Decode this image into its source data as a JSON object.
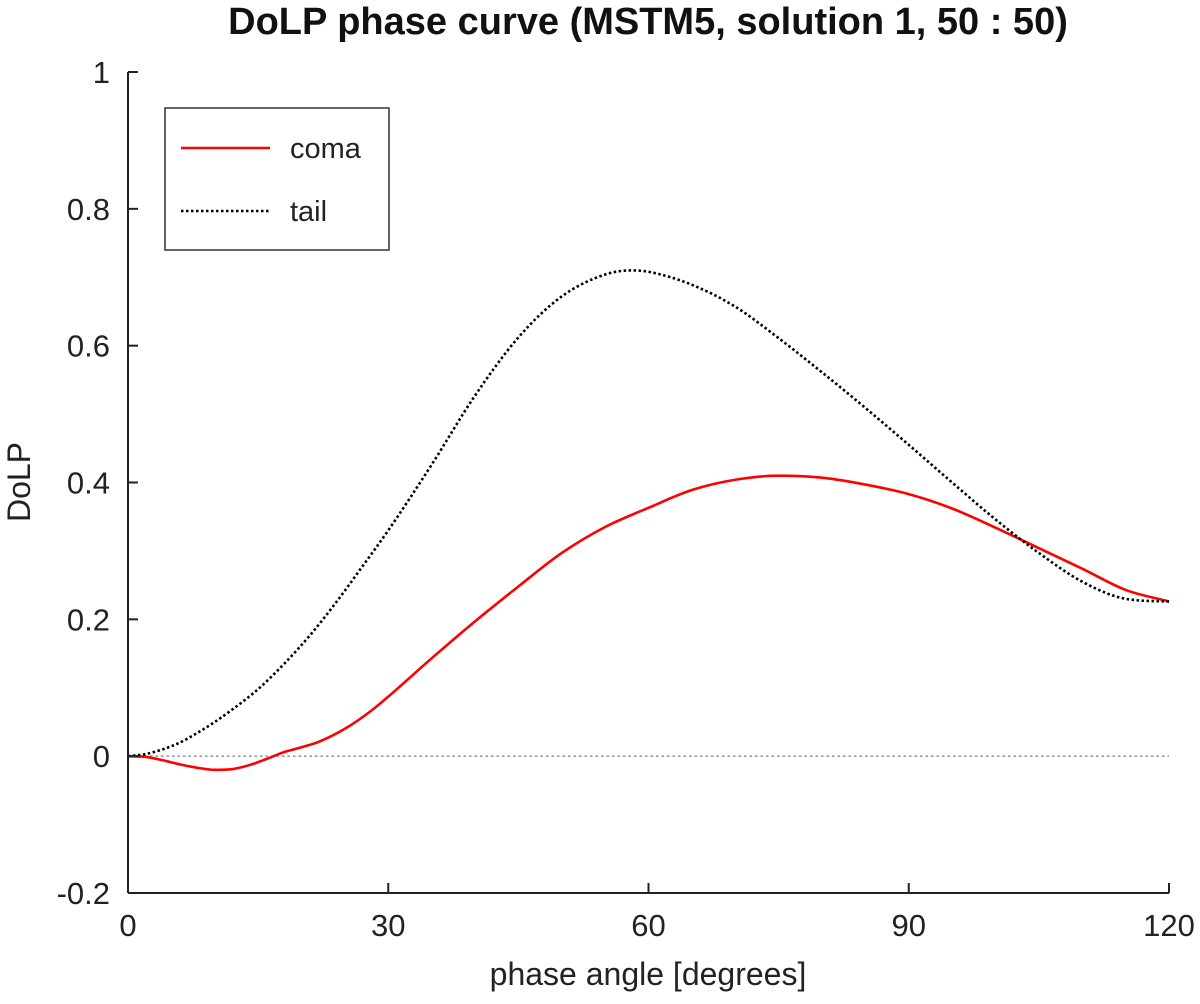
{
  "chart_data": {
    "type": "line",
    "title": "DoLP phase curve (MSTM5, solution 1, 50 : 50)",
    "xlabel": "phase angle [degrees]",
    "ylabel": "DoLP",
    "xlim": [
      0,
      120
    ],
    "ylim": [
      -0.2,
      1
    ],
    "xticks": [
      0,
      30,
      60,
      90,
      120
    ],
    "xtick_labels": [
      "0",
      "30",
      "60",
      "90",
      "120"
    ],
    "yticks": [
      -0.2,
      0,
      0.2,
      0.4,
      0.6,
      0.8,
      1
    ],
    "ytick_labels": [
      "-0.2",
      "0",
      "0.2",
      "0.4",
      "0.6",
      "0.8",
      "1"
    ],
    "grid": false,
    "legend_position": "top-left",
    "reference_line": {
      "y": 0,
      "style": "dotted",
      "color": "#999999"
    },
    "series": [
      {
        "name": "coma",
        "style": "solid",
        "color": "#ff0000",
        "x": [
          0,
          2,
          4,
          6,
          8,
          10,
          12,
          14,
          16,
          18,
          20,
          22,
          25,
          28,
          30,
          35,
          40,
          45,
          50,
          55,
          60,
          65,
          70,
          75,
          80,
          85,
          90,
          95,
          100,
          105,
          110,
          115,
          120
        ],
        "y": [
          0,
          -0.001,
          -0.006,
          -0.012,
          -0.017,
          -0.02,
          -0.019,
          -0.013,
          -0.004,
          0.006,
          0.013,
          0.021,
          0.04,
          0.066,
          0.087,
          0.143,
          0.197,
          0.248,
          0.297,
          0.335,
          0.363,
          0.389,
          0.404,
          0.41,
          0.407,
          0.397,
          0.383,
          0.362,
          0.334,
          0.304,
          0.274,
          0.243,
          0.226
        ]
      },
      {
        "name": "tail",
        "style": "dotted",
        "color": "#000000",
        "x": [
          0,
          2,
          4,
          6,
          8,
          10,
          12,
          15,
          18,
          21,
          24,
          27,
          30,
          35,
          40,
          45,
          50,
          55,
          58,
          60,
          65,
          70,
          75,
          80,
          85,
          90,
          95,
          100,
          105,
          110,
          115,
          120
        ],
        "y": [
          0,
          0.003,
          0.01,
          0.02,
          0.034,
          0.05,
          0.068,
          0.098,
          0.135,
          0.177,
          0.225,
          0.277,
          0.33,
          0.426,
          0.527,
          0.612,
          0.672,
          0.704,
          0.71,
          0.708,
          0.689,
          0.657,
          0.611,
          0.561,
          0.509,
          0.455,
          0.4,
          0.346,
          0.297,
          0.255,
          0.23,
          0.226
        ]
      }
    ]
  }
}
